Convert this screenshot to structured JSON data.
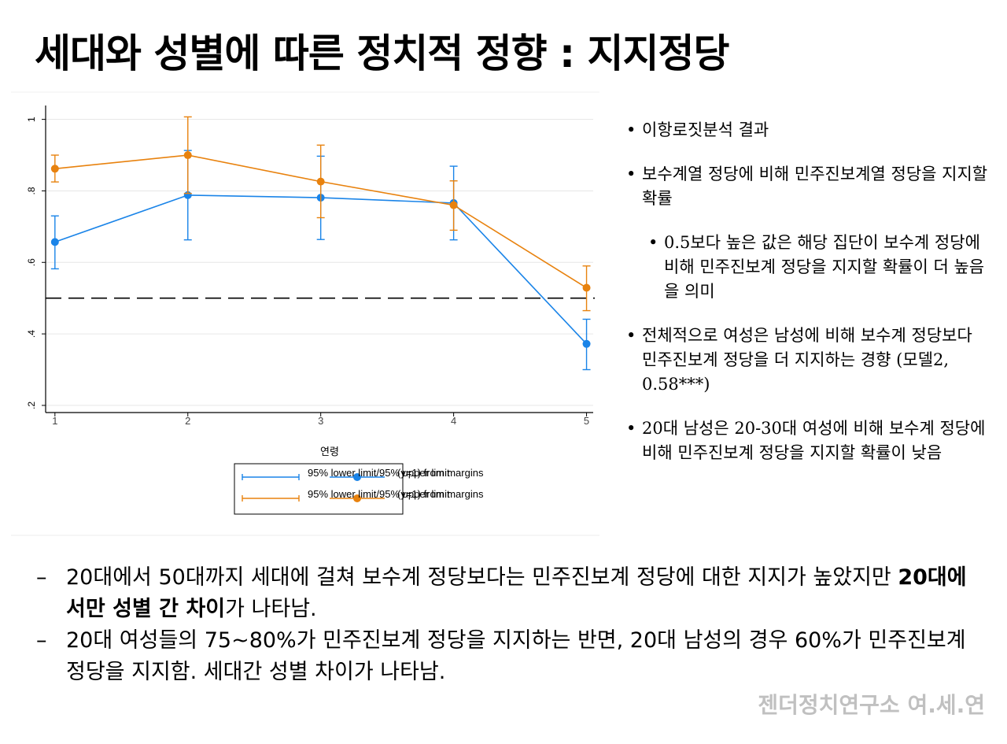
{
  "slide": {
    "title": "세대와 성별에 따른 정치적 정향 : 지지정당",
    "footer": "젠더정치연구소 여.세.연"
  },
  "bullets": [
    {
      "level": 1,
      "text": "이항로짓분석 결과"
    },
    {
      "level": 1,
      "text": "보수계열 정당에 비해 민주진보계열 정당을 지지할 확률"
    },
    {
      "level": 2,
      "text": "0.5보다 높은 값은 해당 집단이 보수계 정당에 비해 민주진보계 정당을 지지할 확률이 더 높음을 의미"
    },
    {
      "level": 1,
      "text": "전체적으로 여성은 남성에 비해 보수계 정당보다 민주진보계 정당을 더 지지하는 경향 (모델2, 0.58***)"
    },
    {
      "level": 1,
      "text": "20대 남성은 20-30대 여성에 비해 보수계 정당에 비해 민주진보계 정당을 지지할 확률이 낮음"
    }
  ],
  "notes": [
    {
      "dash": "–",
      "before": "20대에서 50대까지 세대에 걸쳐 보수계 정당보다는 민주진보계 정당에 대한 지지가 높았지만 ",
      "bold": "20대에서만 성별 간 차이",
      "after": "가 나타남."
    },
    {
      "dash": "–",
      "before": "20대 여성들의 75~80%가 민주진보계 정당을 지지하는 반면, 20대 남성의 경우 60%가 민주진보계 정당을 지지함. 세대간 성별 차이가 나타남.",
      "bold": "",
      "after": ""
    }
  ],
  "colors": {
    "series_blue": "#1a84e8",
    "series_orange": "#e8820e",
    "footer": "#c0c0c0"
  },
  "chart_data": {
    "type": "line",
    "xlabel": "연령",
    "ylabel": "",
    "x": [
      1,
      2,
      3,
      4,
      5
    ],
    "x_tick_labels": [
      "1",
      "2",
      "3",
      "4",
      "5"
    ],
    "y_ticks": [
      0.2,
      0.4,
      0.6,
      0.8,
      1
    ],
    "y_tick_labels": [
      ".2",
      ".4",
      ".6",
      ".8",
      "1"
    ],
    "ylim": [
      0.18,
      1.03
    ],
    "xlim": [
      0.93,
      5.05
    ],
    "reference_line": {
      "y": 0.5,
      "style": "dashed"
    },
    "grid": true,
    "legend_position": "bottom",
    "legend": [
      {
        "line_label": "95% lower limit/95% upper limit",
        "marker_label": "(y=1) from margins",
        "color": "#1a84e8"
      },
      {
        "line_label": "95% lower limit/95% upper limit",
        "marker_label": "(y=1) from margins",
        "color": "#e8820e"
      }
    ],
    "series": [
      {
        "color": "#1a84e8",
        "values": [
          0.657,
          0.788,
          0.781,
          0.766,
          0.372
        ],
        "lower": [
          0.582,
          0.663,
          0.664,
          0.663,
          0.3
        ],
        "upper": [
          0.73,
          0.913,
          0.897,
          0.869,
          0.441
        ]
      },
      {
        "color": "#e8820e",
        "values": [
          0.862,
          0.9,
          0.826,
          0.76,
          0.529
        ],
        "lower": [
          0.825,
          0.793,
          0.725,
          0.69,
          0.465
        ],
        "upper": [
          0.9,
          1.007,
          0.928,
          0.828,
          0.59
        ]
      }
    ]
  }
}
